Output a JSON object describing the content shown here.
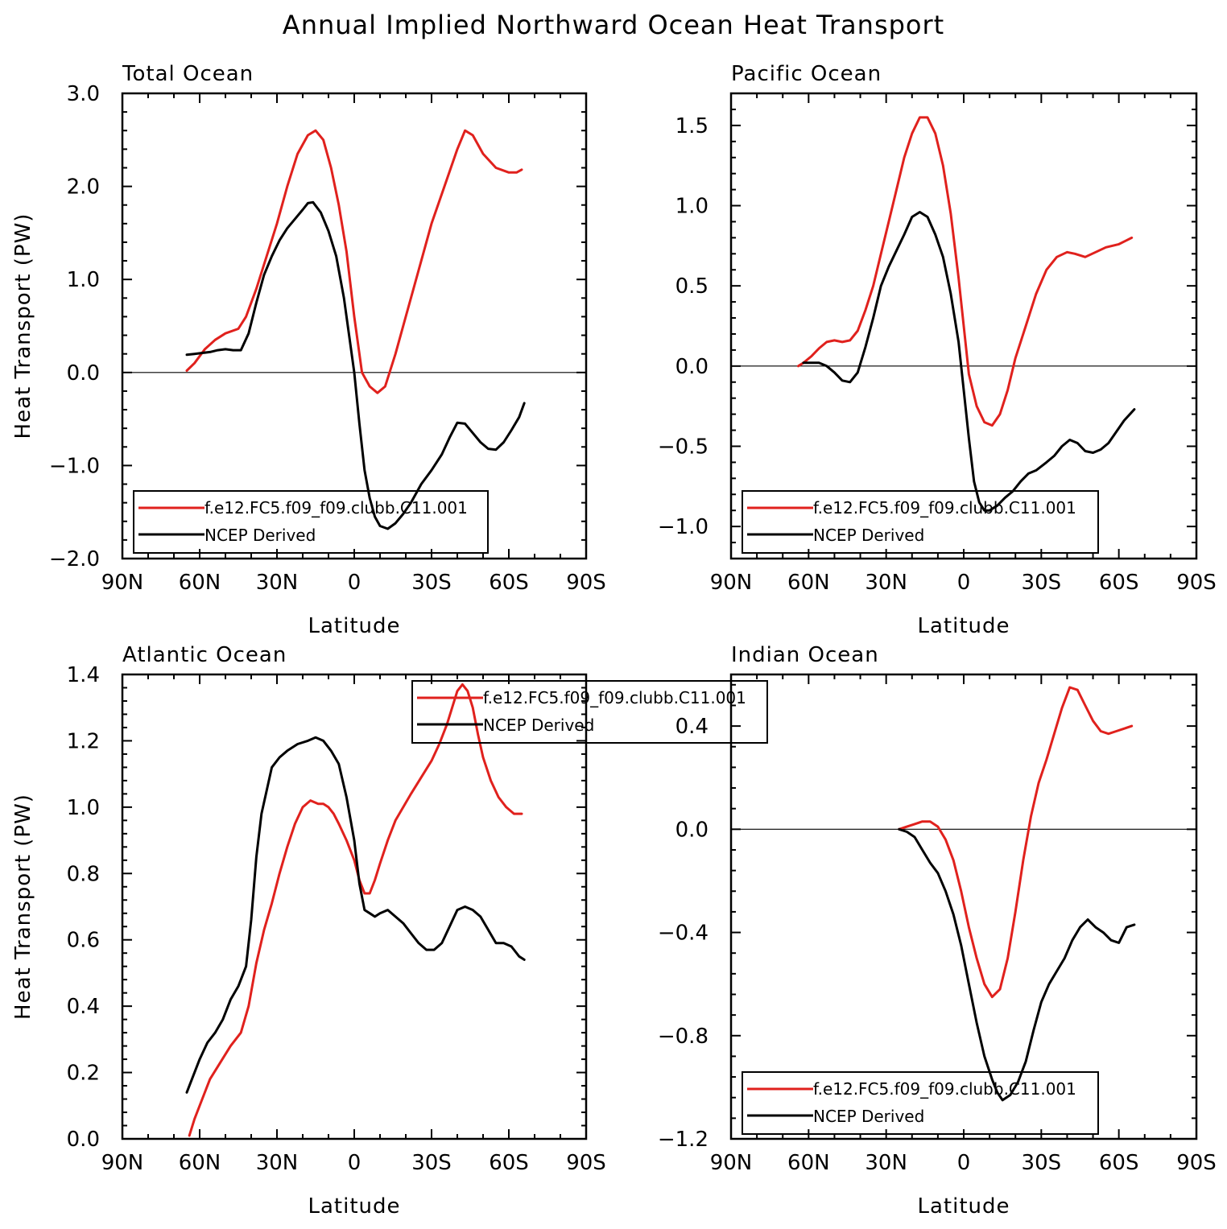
{
  "figure": {
    "title": "Annual Implied Northward Ocean Heat Transport"
  },
  "colors": {
    "model": "#e0211d",
    "obs": "#000000",
    "axis": "#000000",
    "background": "#ffffff"
  },
  "legend": {
    "model_label": "f.e12.FC5.f09_f09.clubb.C11.001",
    "obs_label": "NCEP Derived"
  },
  "chart_data": [
    {
      "type": "line",
      "title": "Total Ocean",
      "xlabel": "Latitude",
      "ylabel": "Heat Transport (PW)",
      "xlim": [
        90,
        -90
      ],
      "ylim": [
        -2.0,
        3.0
      ],
      "x_ticks": [
        90,
        60,
        30,
        0,
        -30,
        -60,
        -90
      ],
      "x_tick_labels": [
        "90N",
        "60N",
        "30N",
        "0",
        "30S",
        "60S",
        "90S"
      ],
      "y_ticks": [
        -2.0,
        -1.0,
        0.0,
        1.0,
        2.0,
        3.0
      ],
      "y_tick_labels": [
        "−2.0",
        "−1.0",
        "0.0",
        "1.0",
        "2.0",
        "3.0"
      ],
      "zero_line": true,
      "legend_position": "bottom-left",
      "series": [
        {
          "name": "f.e12.FC5.f09_f09.clubb.C11.001",
          "x": [
            65,
            62,
            58,
            54,
            50,
            45,
            42,
            38,
            34,
            30,
            26,
            22,
            18,
            15,
            12,
            9,
            6,
            3,
            0,
            -3,
            -6,
            -9,
            -12,
            -16,
            -20,
            -25,
            -30,
            -35,
            -40,
            -43,
            -46,
            -50,
            -55,
            -60,
            -63,
            -65
          ],
          "y": [
            0.02,
            0.1,
            0.25,
            0.35,
            0.42,
            0.47,
            0.6,
            0.9,
            1.25,
            1.6,
            2.0,
            2.35,
            2.55,
            2.6,
            2.5,
            2.2,
            1.8,
            1.3,
            0.6,
            0.0,
            -0.15,
            -0.22,
            -0.15,
            0.2,
            0.6,
            1.1,
            1.6,
            2.0,
            2.4,
            2.6,
            2.55,
            2.35,
            2.2,
            2.15,
            2.15,
            2.18
          ]
        },
        {
          "name": "NCEP Derived",
          "x": [
            65,
            62,
            59,
            56,
            53,
            50,
            47,
            44,
            41,
            38,
            35,
            32,
            29,
            26,
            23,
            20,
            18,
            16,
            13,
            10,
            7,
            4,
            2,
            0,
            -2,
            -4,
            -6,
            -8,
            -10,
            -13,
            -16,
            -19,
            -22,
            -26,
            -30,
            -34,
            -37,
            -40,
            -43,
            -46,
            -49,
            -52,
            -55,
            -58,
            -61,
            -64,
            -66
          ],
          "y": [
            0.19,
            0.2,
            0.21,
            0.22,
            0.24,
            0.25,
            0.24,
            0.24,
            0.42,
            0.75,
            1.05,
            1.25,
            1.42,
            1.55,
            1.65,
            1.75,
            1.82,
            1.83,
            1.72,
            1.52,
            1.25,
            0.8,
            0.4,
            0.0,
            -0.55,
            -1.05,
            -1.35,
            -1.55,
            -1.65,
            -1.68,
            -1.62,
            -1.52,
            -1.4,
            -1.2,
            -1.05,
            -0.88,
            -0.7,
            -0.54,
            -0.55,
            -0.65,
            -0.75,
            -0.82,
            -0.83,
            -0.75,
            -0.62,
            -0.48,
            -0.33
          ]
        }
      ]
    },
    {
      "type": "line",
      "title": "Pacific Ocean",
      "xlabel": "Latitude",
      "ylabel": "",
      "xlim": [
        90,
        -90
      ],
      "ylim": [
        -1.2,
        1.7
      ],
      "x_ticks": [
        90,
        60,
        30,
        0,
        -30,
        -60,
        -90
      ],
      "x_tick_labels": [
        "90N",
        "60N",
        "30N",
        "0",
        "30S",
        "60S",
        "90S"
      ],
      "y_ticks": [
        -1.0,
        -0.5,
        0.0,
        0.5,
        1.0,
        1.5
      ],
      "y_tick_labels": [
        "−1.0",
        "−0.5",
        "0.0",
        "0.5",
        "1.0",
        "1.5"
      ],
      "zero_line": true,
      "legend_position": "bottom-left",
      "series": [
        {
          "name": "f.e12.FC5.f09_f09.clubb.C11.001",
          "x": [
            64,
            62,
            59,
            56,
            53,
            50,
            47,
            44,
            41,
            38,
            35,
            32,
            29,
            26,
            23,
            20,
            17,
            14,
            11,
            8,
            5,
            2,
            0,
            -2,
            -5,
            -8,
            -11,
            -14,
            -17,
            -20,
            -24,
            -28,
            -32,
            -36,
            -40,
            -43,
            -47,
            -51,
            -55,
            -60,
            -65
          ],
          "y": [
            0.0,
            0.02,
            0.06,
            0.11,
            0.15,
            0.16,
            0.15,
            0.16,
            0.22,
            0.35,
            0.5,
            0.7,
            0.9,
            1.1,
            1.3,
            1.45,
            1.55,
            1.55,
            1.45,
            1.25,
            0.95,
            0.55,
            0.25,
            -0.05,
            -0.25,
            -0.35,
            -0.37,
            -0.3,
            -0.15,
            0.05,
            0.25,
            0.45,
            0.6,
            0.68,
            0.71,
            0.7,
            0.68,
            0.71,
            0.74,
            0.76,
            0.8
          ]
        },
        {
          "name": "NCEP Derived",
          "x": [
            62,
            59,
            56,
            53,
            50,
            47,
            44,
            41,
            38,
            35,
            32,
            29,
            26,
            23,
            20,
            17,
            14,
            11,
            8,
            5,
            2,
            0,
            -2,
            -4,
            -6,
            -8,
            -10,
            -13,
            -16,
            -19,
            -22,
            -25,
            -28,
            -32,
            -35,
            -38,
            -41,
            -44,
            -47,
            -50,
            -53,
            -56,
            -59,
            -62,
            -66
          ],
          "y": [
            0.02,
            0.02,
            0.02,
            0.0,
            -0.04,
            -0.09,
            -0.1,
            -0.04,
            0.12,
            0.3,
            0.5,
            0.62,
            0.72,
            0.82,
            0.93,
            0.96,
            0.93,
            0.82,
            0.68,
            0.45,
            0.15,
            -0.15,
            -0.45,
            -0.72,
            -0.85,
            -0.9,
            -0.9,
            -0.87,
            -0.82,
            -0.78,
            -0.72,
            -0.67,
            -0.65,
            -0.6,
            -0.56,
            -0.5,
            -0.46,
            -0.48,
            -0.53,
            -0.54,
            -0.52,
            -0.48,
            -0.41,
            -0.34,
            -0.27
          ]
        }
      ]
    },
    {
      "type": "line",
      "title": "Atlantic Ocean",
      "xlabel": "Latitude",
      "ylabel": "Heat Transport (PW)",
      "xlim": [
        90,
        -90
      ],
      "ylim": [
        0.0,
        1.4
      ],
      "x_ticks": [
        90,
        60,
        30,
        0,
        -30,
        -60,
        -90
      ],
      "x_tick_labels": [
        "90N",
        "60N",
        "30N",
        "0",
        "30S",
        "60S",
        "90S"
      ],
      "y_ticks": [
        0.0,
        0.2,
        0.4,
        0.6,
        0.8,
        1.0,
        1.2,
        1.4
      ],
      "y_tick_labels": [
        "0.0",
        "0.2",
        "0.4",
        "0.6",
        "0.8",
        "1.0",
        "1.2",
        "1.4"
      ],
      "zero_line": false,
      "legend_position": "top-center",
      "series": [
        {
          "name": "f.e12.FC5.f09_f09.clubb.C11.001",
          "x": [
            64,
            62,
            59,
            56,
            52,
            48,
            44,
            41,
            38,
            35,
            32,
            29,
            26,
            23,
            20,
            17,
            14,
            12,
            10,
            8,
            6,
            3,
            0,
            -2,
            -4,
            -6,
            -8,
            -10,
            -13,
            -16,
            -19,
            -22,
            -26,
            -30,
            -33,
            -36,
            -38,
            -40,
            -42,
            -44,
            -46,
            -48,
            -50,
            -53,
            -56,
            -59,
            -62,
            -65
          ],
          "y": [
            0.01,
            0.06,
            0.12,
            0.18,
            0.23,
            0.28,
            0.32,
            0.4,
            0.53,
            0.63,
            0.71,
            0.8,
            0.88,
            0.95,
            1.0,
            1.02,
            1.01,
            1.01,
            1.0,
            0.98,
            0.95,
            0.9,
            0.84,
            0.78,
            0.74,
            0.74,
            0.78,
            0.83,
            0.9,
            0.96,
            1.0,
            1.04,
            1.09,
            1.14,
            1.19,
            1.25,
            1.3,
            1.35,
            1.37,
            1.35,
            1.3,
            1.22,
            1.15,
            1.08,
            1.03,
            1.0,
            0.98,
            0.98
          ]
        },
        {
          "name": "NCEP Derived",
          "x": [
            65,
            63,
            60,
            57,
            54,
            51,
            48,
            45,
            42,
            40,
            38,
            36,
            34,
            32,
            29,
            26,
            22,
            18,
            15,
            12,
            9,
            6,
            3,
            0,
            -2,
            -4,
            -6,
            -8,
            -10,
            -13,
            -16,
            -19,
            -22,
            -25,
            -28,
            -31,
            -34,
            -37,
            -40,
            -43,
            -46,
            -49,
            -52,
            -55,
            -58,
            -61,
            -64,
            -66
          ],
          "y": [
            0.14,
            0.18,
            0.24,
            0.29,
            0.32,
            0.36,
            0.42,
            0.46,
            0.52,
            0.66,
            0.85,
            0.98,
            1.05,
            1.12,
            1.15,
            1.17,
            1.19,
            1.2,
            1.21,
            1.2,
            1.17,
            1.13,
            1.03,
            0.9,
            0.77,
            0.69,
            0.68,
            0.67,
            0.68,
            0.69,
            0.67,
            0.65,
            0.62,
            0.59,
            0.57,
            0.57,
            0.59,
            0.64,
            0.69,
            0.7,
            0.69,
            0.67,
            0.63,
            0.59,
            0.59,
            0.58,
            0.55,
            0.54
          ]
        }
      ]
    },
    {
      "type": "line",
      "title": "Indian Ocean",
      "xlabel": "Latitude",
      "ylabel": "",
      "xlim": [
        90,
        -90
      ],
      "ylim": [
        -1.2,
        0.6
      ],
      "x_ticks": [
        90,
        60,
        30,
        0,
        -30,
        -60,
        -90
      ],
      "x_tick_labels": [
        "90N",
        "60N",
        "30N",
        "0",
        "30S",
        "60S",
        "90S"
      ],
      "y_ticks": [
        -1.2,
        -0.8,
        -0.4,
        0.0,
        0.4
      ],
      "y_tick_labels": [
        "−1.2",
        "−0.8",
        "−0.4",
        "0.0",
        "0.4"
      ],
      "zero_line": true,
      "legend_position": "bottom-left",
      "series": [
        {
          "name": "f.e12.FC5.f09_f09.clubb.C11.001",
          "x": [
            25,
            22,
            19,
            16,
            13,
            10,
            7,
            4,
            1,
            -2,
            -5,
            -8,
            -11,
            -14,
            -17,
            -20,
            -23,
            -26,
            -29,
            -32,
            -35,
            -38,
            -41,
            -44,
            -47,
            -50,
            -53,
            -56,
            -59,
            -62,
            -65
          ],
          "y": [
            0.0,
            0.01,
            0.02,
            0.03,
            0.03,
            0.01,
            -0.04,
            -0.12,
            -0.24,
            -0.38,
            -0.5,
            -0.6,
            -0.65,
            -0.62,
            -0.5,
            -0.32,
            -0.12,
            0.05,
            0.18,
            0.27,
            0.37,
            0.47,
            0.55,
            0.54,
            0.48,
            0.42,
            0.38,
            0.37,
            0.38,
            0.39,
            0.4
          ]
        },
        {
          "name": "NCEP Derived",
          "x": [
            25,
            22,
            19,
            16,
            13,
            10,
            7,
            4,
            1,
            -2,
            -5,
            -8,
            -11,
            -13,
            -15,
            -18,
            -21,
            -24,
            -27,
            -30,
            -33,
            -36,
            -39,
            -42,
            -45,
            -48,
            -51,
            -54,
            -57,
            -60,
            -63,
            -66
          ],
          "y": [
            0.0,
            -0.01,
            -0.03,
            -0.08,
            -0.13,
            -0.17,
            -0.24,
            -0.33,
            -0.45,
            -0.6,
            -0.75,
            -0.88,
            -0.97,
            -1.02,
            -1.05,
            -1.03,
            -0.98,
            -0.9,
            -0.78,
            -0.67,
            -0.6,
            -0.55,
            -0.5,
            -0.43,
            -0.38,
            -0.35,
            -0.38,
            -0.4,
            -0.43,
            -0.44,
            -0.38,
            -0.37
          ]
        }
      ]
    }
  ]
}
